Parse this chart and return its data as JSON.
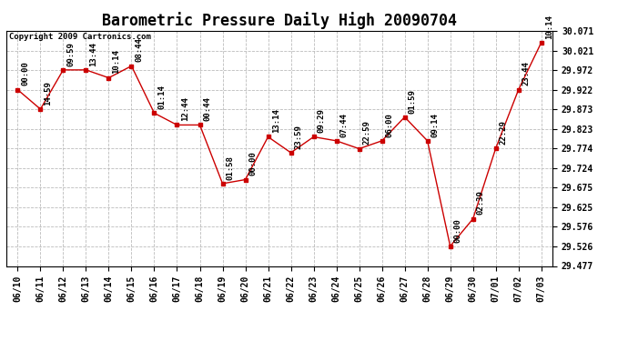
{
  "title": "Barometric Pressure Daily High 20090704",
  "copyright": "Copyright 2009 Cartronics.com",
  "x_labels": [
    "06/10",
    "06/11",
    "06/12",
    "06/13",
    "06/14",
    "06/15",
    "06/16",
    "06/17",
    "06/18",
    "06/19",
    "06/20",
    "06/21",
    "06/22",
    "06/23",
    "06/24",
    "06/25",
    "06/26",
    "06/27",
    "06/28",
    "06/29",
    "06/30",
    "07/01",
    "07/02",
    "07/03"
  ],
  "y_values": [
    29.922,
    29.873,
    29.972,
    29.972,
    29.952,
    29.982,
    29.863,
    29.833,
    29.833,
    29.685,
    29.695,
    29.803,
    29.763,
    29.803,
    29.793,
    29.773,
    29.793,
    29.853,
    29.793,
    29.527,
    29.596,
    29.774,
    29.922,
    30.041
  ],
  "time_labels": [
    "00:00",
    "14:59",
    "09:59",
    "13:44",
    "10:14",
    "08:44",
    "01:14",
    "12:44",
    "00:44",
    "01:58",
    "00:00",
    "13:14",
    "23:59",
    "09:29",
    "07:44",
    "22:59",
    "06:00",
    "01:59",
    "09:14",
    "00:00",
    "02:39",
    "22:29",
    "23:44",
    "10:14"
  ],
  "line_color": "#cc0000",
  "marker_color": "#cc0000",
  "background_color": "#ffffff",
  "grid_color": "#bbbbbb",
  "ylim_min": 29.477,
  "ylim_max": 30.071,
  "yticks": [
    29.477,
    29.526,
    29.576,
    29.625,
    29.675,
    29.724,
    29.774,
    29.823,
    29.873,
    29.922,
    29.972,
    30.021,
    30.071
  ],
  "title_fontsize": 12,
  "label_fontsize": 6.5,
  "tick_fontsize": 7,
  "copyright_fontsize": 6.5
}
